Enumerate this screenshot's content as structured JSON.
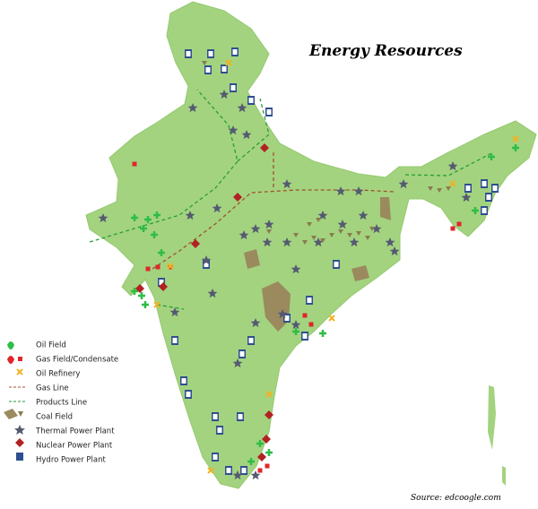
{
  "title": "Energy Resources",
  "legend": [
    {
      "label": "Oil Field"
    },
    {
      "label": "Gas Field/Condensate"
    },
    {
      "label": "Oil Refinery"
    },
    {
      "label": "Gas Line"
    },
    {
      "label": "Products Line"
    },
    {
      "label": "Coal Field"
    },
    {
      "label": "Thermal Power Plant"
    },
    {
      "label": "Nuclear Power Plant"
    },
    {
      "label": "Hydro Power Plant"
    }
  ],
  "source": "Source: edcoogle.com"
}
